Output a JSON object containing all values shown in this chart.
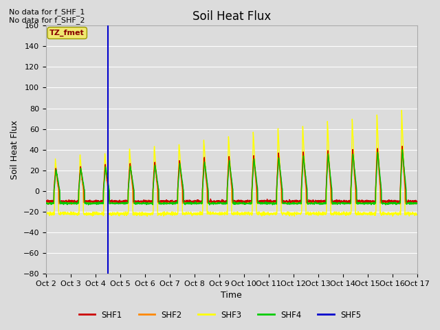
{
  "title": "Soil Heat Flux",
  "ylabel": "Soil Heat Flux",
  "xlabel": "Time",
  "ylim": [
    -80,
    160
  ],
  "yticks": [
    -80,
    -60,
    -40,
    -20,
    0,
    20,
    40,
    60,
    80,
    100,
    120,
    140,
    160
  ],
  "bg_color": "#dcdcdc",
  "plot_bg_color": "#dcdcdc",
  "annotations_top_left": [
    "No data for f_SHF_1",
    "No data for f_SHF_2"
  ],
  "tz_label": "TZ_fmet",
  "vline_x": 2.5,
  "xtick_labels": [
    "Oct 2",
    "Oct 3",
    "Oct 4",
    "Oct 5",
    "Oct 6",
    "Oct 7",
    "Oct 8",
    "Oct 9",
    "Oct 10",
    "Oct 11",
    "Oct 12",
    "Oct 13",
    "Oct 14",
    "Oct 15",
    "Oct 16",
    "Oct 17"
  ],
  "legend_entries": [
    {
      "label": "SHF1",
      "color": "#cc0000"
    },
    {
      "label": "SHF2",
      "color": "#ff8800"
    },
    {
      "label": "SHF3",
      "color": "#ffff00"
    },
    {
      "label": "SHF4",
      "color": "#00cc00"
    },
    {
      "label": "SHF5",
      "color": "#0000cc"
    }
  ],
  "shf1_color": "#cc0000",
  "shf2_color": "#ff8800",
  "shf3_color": "#ffff00",
  "shf4_color": "#00cc00",
  "shf5_color": "#0000cc",
  "line_width": 1.0,
  "vline_color": "#0000cc",
  "grid_color": "#ffffff",
  "title_fontsize": 12,
  "axis_label_fontsize": 9,
  "tick_fontsize": 8
}
